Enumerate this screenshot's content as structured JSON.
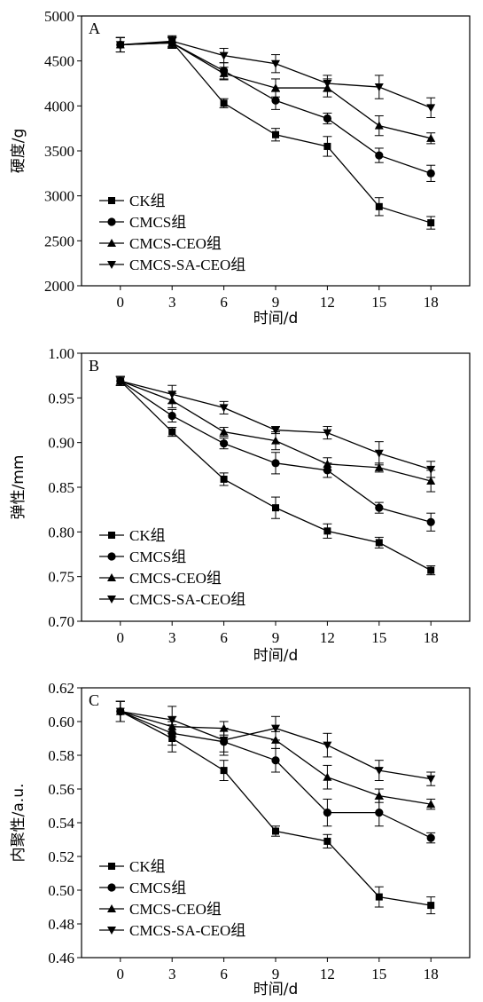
{
  "chart_data": [
    {
      "type": "line",
      "panel": "A",
      "xlabel": "时间/d",
      "ylabel": "硬度/g",
      "x": [
        0,
        3,
        6,
        9,
        12,
        15,
        18
      ],
      "xticks": [
        "0",
        "3",
        "6",
        "9",
        "12",
        "15",
        "18"
      ],
      "ylim": [
        2000,
        5000
      ],
      "yticks": [
        "2000",
        "2500",
        "3000",
        "3500",
        "4000",
        "4500",
        "5000"
      ],
      "yticks_values": [
        2000,
        2500,
        3000,
        3500,
        4000,
        4500,
        5000
      ],
      "legend_position": "bottom-left",
      "series": [
        {
          "name": "CK组",
          "marker": "square",
          "values": [
            4680,
            4710,
            4030,
            3680,
            3550,
            2880,
            2700
          ],
          "errors": [
            80,
            60,
            50,
            70,
            110,
            100,
            70
          ]
        },
        {
          "name": "CMCS组",
          "marker": "circle",
          "values": [
            4680,
            4700,
            4390,
            4060,
            3860,
            3450,
            3250
          ],
          "errors": [
            80,
            60,
            90,
            100,
            60,
            80,
            90
          ]
        },
        {
          "name": "CMCS-CEO组",
          "marker": "triangle-up",
          "values": [
            4680,
            4700,
            4360,
            4200,
            4200,
            3780,
            3640
          ],
          "errors": [
            80,
            60,
            70,
            100,
            100,
            110,
            60
          ]
        },
        {
          "name": "CMCS-SA-CEO组",
          "marker": "triangle-down",
          "values": [
            4680,
            4720,
            4560,
            4470,
            4250,
            4210,
            3980
          ],
          "errors": [
            80,
            60,
            80,
            100,
            90,
            130,
            110
          ]
        }
      ]
    },
    {
      "type": "line",
      "panel": "B",
      "xlabel": "时间/d",
      "ylabel": "弹性/mm",
      "x": [
        0,
        3,
        6,
        9,
        12,
        15,
        18
      ],
      "xticks": [
        "0",
        "3",
        "6",
        "9",
        "12",
        "15",
        "18"
      ],
      "ylim": [
        0.7,
        1.0
      ],
      "yticks": [
        "0.70",
        "0.75",
        "0.80",
        "0.85",
        "0.90",
        "0.95",
        "1.00"
      ],
      "yticks_values": [
        0.7,
        0.75,
        0.8,
        0.85,
        0.9,
        0.95,
        1.0
      ],
      "legend_position": "bottom-left",
      "series": [
        {
          "name": "CK组",
          "marker": "square",
          "values": [
            0.969,
            0.912,
            0.859,
            0.827,
            0.801,
            0.788,
            0.757
          ],
          "errors": [
            0.005,
            0.005,
            0.007,
            0.012,
            0.008,
            0.006,
            0.005
          ]
        },
        {
          "name": "CMCS组",
          "marker": "circle",
          "values": [
            0.969,
            0.93,
            0.899,
            0.877,
            0.869,
            0.827,
            0.811
          ],
          "errors": [
            0.005,
            0.007,
            0.006,
            0.012,
            0.008,
            0.006,
            0.01
          ]
        },
        {
          "name": "CMCS-CEO组",
          "marker": "triangle-up",
          "values": [
            0.969,
            0.947,
            0.912,
            0.902,
            0.876,
            0.872,
            0.857
          ],
          "errors": [
            0.005,
            0.008,
            0.005,
            0.01,
            0.007,
            0.005,
            0.012
          ]
        },
        {
          "name": "CMCS-SA-CEO组",
          "marker": "triangle-down",
          "values": [
            0.969,
            0.954,
            0.939,
            0.914,
            0.911,
            0.888,
            0.87
          ],
          "errors": [
            0.005,
            0.01,
            0.007,
            0.004,
            0.007,
            0.013,
            0.009
          ]
        }
      ]
    },
    {
      "type": "line",
      "panel": "C",
      "xlabel": "时间/d",
      "ylabel": "内聚性/a.u.",
      "x": [
        0,
        3,
        6,
        9,
        12,
        15,
        18
      ],
      "xticks": [
        "0",
        "3",
        "6",
        "9",
        "12",
        "15",
        "18"
      ],
      "ylim": [
        0.46,
        0.62
      ],
      "yticks": [
        "0.46",
        "0.48",
        "0.50",
        "0.52",
        "0.54",
        "0.56",
        "0.58",
        "0.60",
        "0.62"
      ],
      "yticks_values": [
        0.46,
        0.48,
        0.5,
        0.52,
        0.54,
        0.56,
        0.58,
        0.6,
        0.62
      ],
      "legend_position": "bottom-left",
      "series": [
        {
          "name": "CK组",
          "marker": "square",
          "values": [
            0.606,
            0.59,
            0.571,
            0.535,
            0.529,
            0.496,
            0.491
          ],
          "errors": [
            0.006,
            0.008,
            0.006,
            0.003,
            0.004,
            0.006,
            0.005
          ]
        },
        {
          "name": "CMCS组",
          "marker": "circle",
          "values": [
            0.606,
            0.593,
            0.588,
            0.577,
            0.546,
            0.546,
            0.531
          ],
          "errors": [
            0.006,
            0.007,
            0.008,
            0.007,
            0.008,
            0.008,
            0.003
          ]
        },
        {
          "name": "CMCS-CEO组",
          "marker": "triangle-up",
          "values": [
            0.606,
            0.597,
            0.596,
            0.589,
            0.567,
            0.556,
            0.551
          ],
          "errors": [
            0.006,
            0.006,
            0.004,
            0.005,
            0.007,
            0.004,
            0.003
          ]
        },
        {
          "name": "CMCS-SA-CEO组",
          "marker": "triangle-down",
          "values": [
            0.606,
            0.601,
            0.589,
            0.596,
            0.586,
            0.571,
            0.566
          ],
          "errors": [
            0.006,
            0.008,
            0.007,
            0.007,
            0.007,
            0.006,
            0.004
          ]
        }
      ]
    }
  ]
}
